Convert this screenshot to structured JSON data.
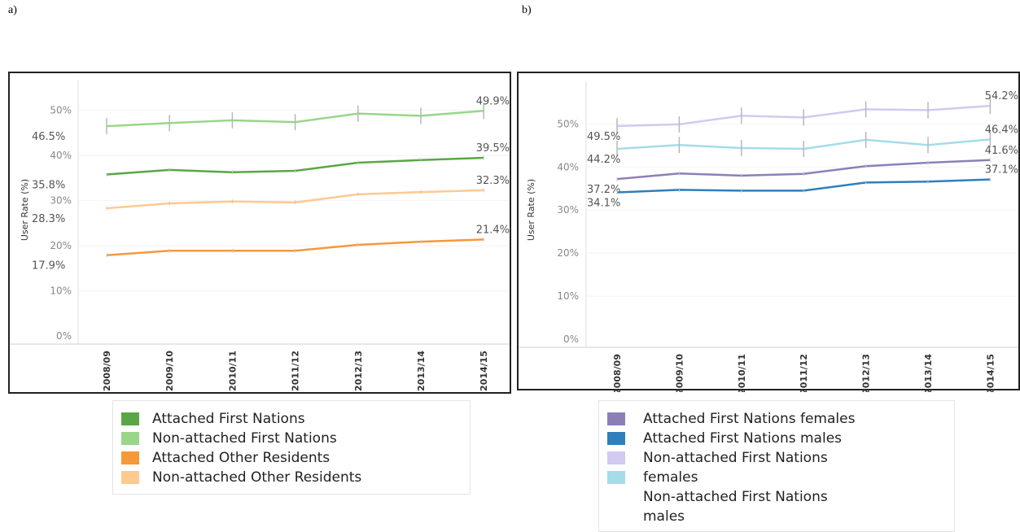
{
  "panels": [
    {
      "letter": "a)",
      "chart_data": {
        "type": "line",
        "title": "",
        "xlabel": "",
        "ylabel": "User Rate (%)",
        "ylim": [
          0,
          0.55
        ],
        "yticks": [
          "0%",
          "10%",
          "20%",
          "30%",
          "40%",
          "50%"
        ],
        "categories": [
          "2008/09",
          "2009/10",
          "2010/11",
          "2011/12",
          "2012/13",
          "2013/14",
          "2014/15"
        ],
        "series": [
          {
            "name": "Attached First Nations",
            "color": "#5aa646",
            "values": [
              0.358,
              0.368,
              0.363,
              0.366,
              0.384,
              0.39,
              0.395
            ],
            "start_label": "35.8%",
            "end_label": "39.5%",
            "error_bars": false
          },
          {
            "name": "Non-attached First Nations",
            "color": "#99d68a",
            "values": [
              0.465,
              0.472,
              0.478,
              0.474,
              0.493,
              0.488,
              0.499
            ],
            "start_label": "46.5%",
            "end_label": "49.9%",
            "error_bars": true
          },
          {
            "name": "Attached Other Residents",
            "color": "#f5993a",
            "values": [
              0.179,
              0.189,
              0.189,
              0.189,
              0.202,
              0.209,
              0.214
            ],
            "start_label": "17.9%",
            "end_label": "21.4%",
            "error_bars": false
          },
          {
            "name": "Non-attached Other Residents",
            "color": "#ffc98f",
            "values": [
              0.283,
              0.294,
              0.298,
              0.296,
              0.314,
              0.319,
              0.323
            ],
            "start_label": "28.3%",
            "end_label": "32.3%",
            "error_bars": false
          }
        ],
        "grid": true,
        "legend": "bottom"
      }
    },
    {
      "letter": "b)",
      "chart_data": {
        "type": "line",
        "title": "",
        "xlabel": "",
        "ylabel": "User Rate (%)",
        "ylim": [
          0,
          0.58
        ],
        "yticks": [
          "0%",
          "10%",
          "20%",
          "30%",
          "40%",
          "50%"
        ],
        "categories": [
          "2008/09",
          "2009/10",
          "2010/11",
          "2011/12",
          "2012/13",
          "2013/14",
          "2014/15"
        ],
        "series": [
          {
            "name": "Attached First Nations females",
            "color": "#8c7fb8",
            "values": [
              0.372,
              0.385,
              0.38,
              0.384,
              0.402,
              0.41,
              0.416
            ],
            "start_label": "37.2%",
            "end_label": "41.6%",
            "error_bars": false
          },
          {
            "name": "Attached First Nations males",
            "color": "#2f7fbc",
            "values": [
              0.341,
              0.347,
              0.345,
              0.345,
              0.364,
              0.366,
              0.371
            ],
            "start_label": "34.1%",
            "end_label": "37.1%",
            "error_bars": false
          },
          {
            "name": "Non-attached First Nations females",
            "color": "#d2caf0",
            "values": [
              0.495,
              0.499,
              0.519,
              0.515,
              0.534,
              0.532,
              0.542
            ],
            "start_label": "49.5%",
            "end_label": "54.2%",
            "error_bars": true
          },
          {
            "name": "Non-attached First Nations males",
            "color": "#a4dcea",
            "values": [
              0.442,
              0.451,
              0.444,
              0.442,
              0.463,
              0.451,
              0.464
            ],
            "start_label": "44.2%",
            "end_label": "46.4%",
            "error_bars": true
          }
        ],
        "grid": true,
        "legend": "bottom"
      }
    }
  ],
  "legend_b_extra": "Non-attached First Nations males"
}
